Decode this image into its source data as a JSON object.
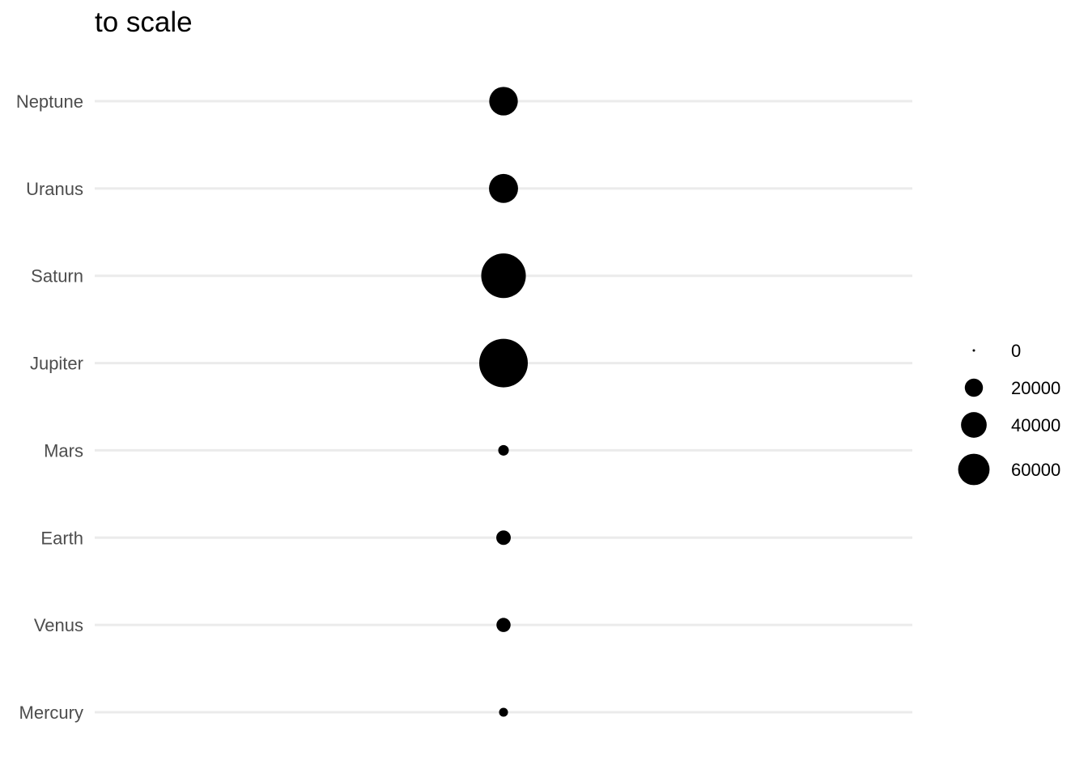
{
  "chart_data": {
    "type": "scatter",
    "title": "to scale",
    "xlabel": "",
    "ylabel": "",
    "grid": "horizontal major lines only",
    "legend_position": "right",
    "x": 0,
    "categories": [
      "Mercury",
      "Venus",
      "Earth",
      "Mars",
      "Jupiter",
      "Saturn",
      "Uranus",
      "Neptune"
    ],
    "size_values": [
      4879,
      12104,
      12756,
      6792,
      142984,
      120536,
      51118,
      49528
    ],
    "size_max": 142984,
    "legend": {
      "breaks": [
        0,
        20000,
        40000,
        60000
      ],
      "labels": [
        "0",
        "20000",
        "40000",
        "60000"
      ]
    },
    "point_color": "#000000",
    "grid_color": "#ebebeb"
  }
}
